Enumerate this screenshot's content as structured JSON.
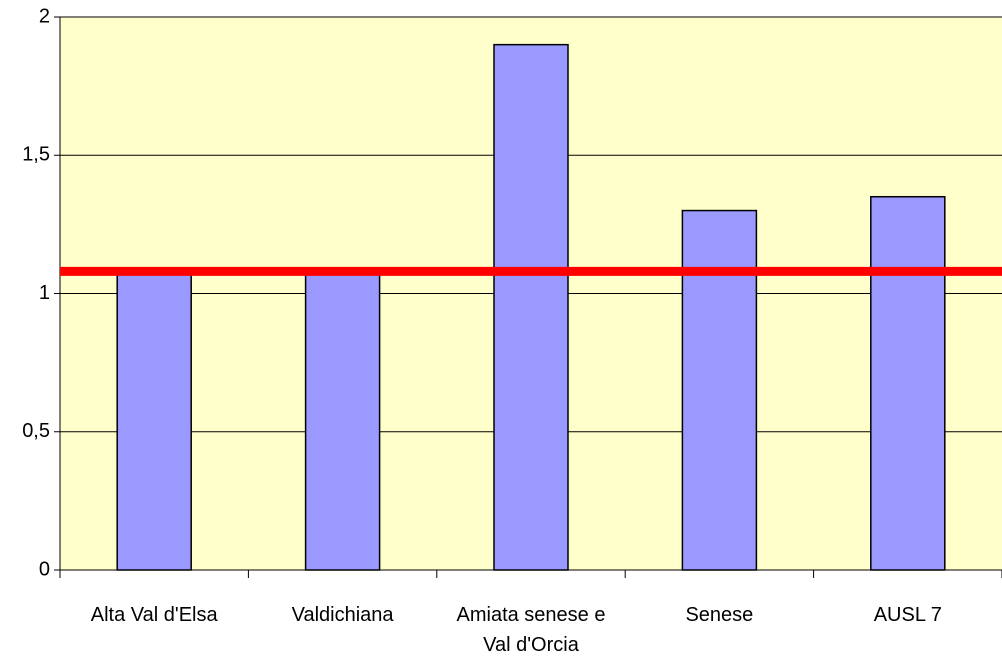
{
  "chart_data": {
    "type": "bar",
    "categories": [
      "Alta Val d'Elsa",
      "Valdichiana",
      "Amiata senese e Val d'Orcia",
      "Senese",
      "AUSL 7"
    ],
    "values": [
      1.08,
      1.09,
      1.9,
      1.3,
      1.35
    ],
    "color": "#9999ff",
    "ylim": [
      0,
      2
    ],
    "yticks": [
      0,
      {
        "value": 0.5,
        "label": "0,5"
      },
      1,
      {
        "value": 1.5,
        "label": "1,5"
      },
      2
    ],
    "grid": true,
    "reference_line": {
      "value": 1.08,
      "color": "#ff0000"
    }
  }
}
